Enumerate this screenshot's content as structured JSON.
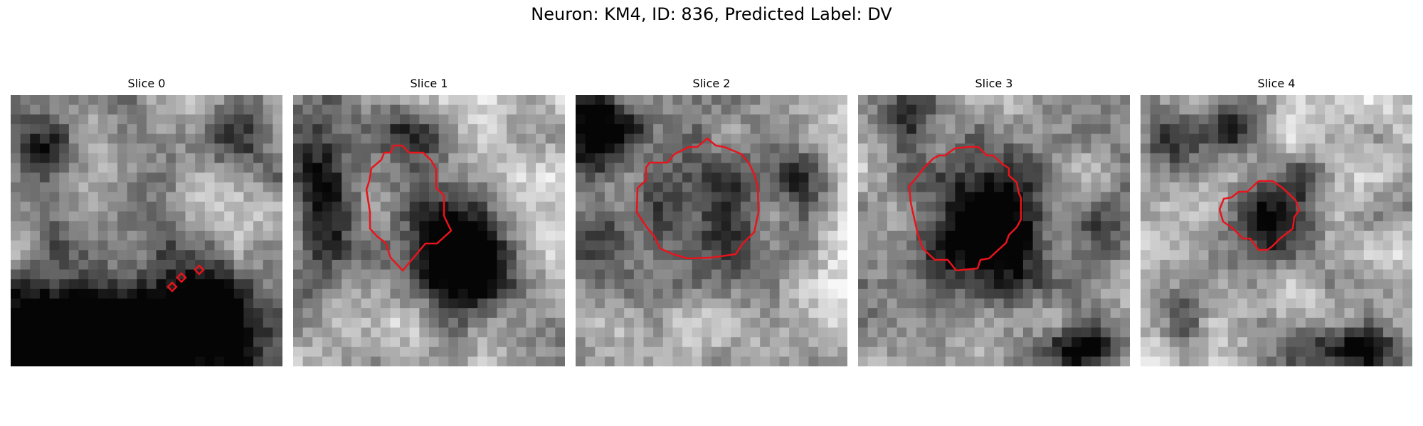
{
  "figure": {
    "title": "Neuron: KM4, ID: 836, Predicted Label: DV"
  },
  "panels": [
    {
      "title": "Slice 0"
    },
    {
      "title": "Slice 1"
    },
    {
      "title": "Slice 2"
    },
    {
      "title": "Slice 3"
    },
    {
      "title": "Slice 4"
    }
  ],
  "colors": {
    "contour": "#e8141c",
    "background": "#ffffff"
  }
}
